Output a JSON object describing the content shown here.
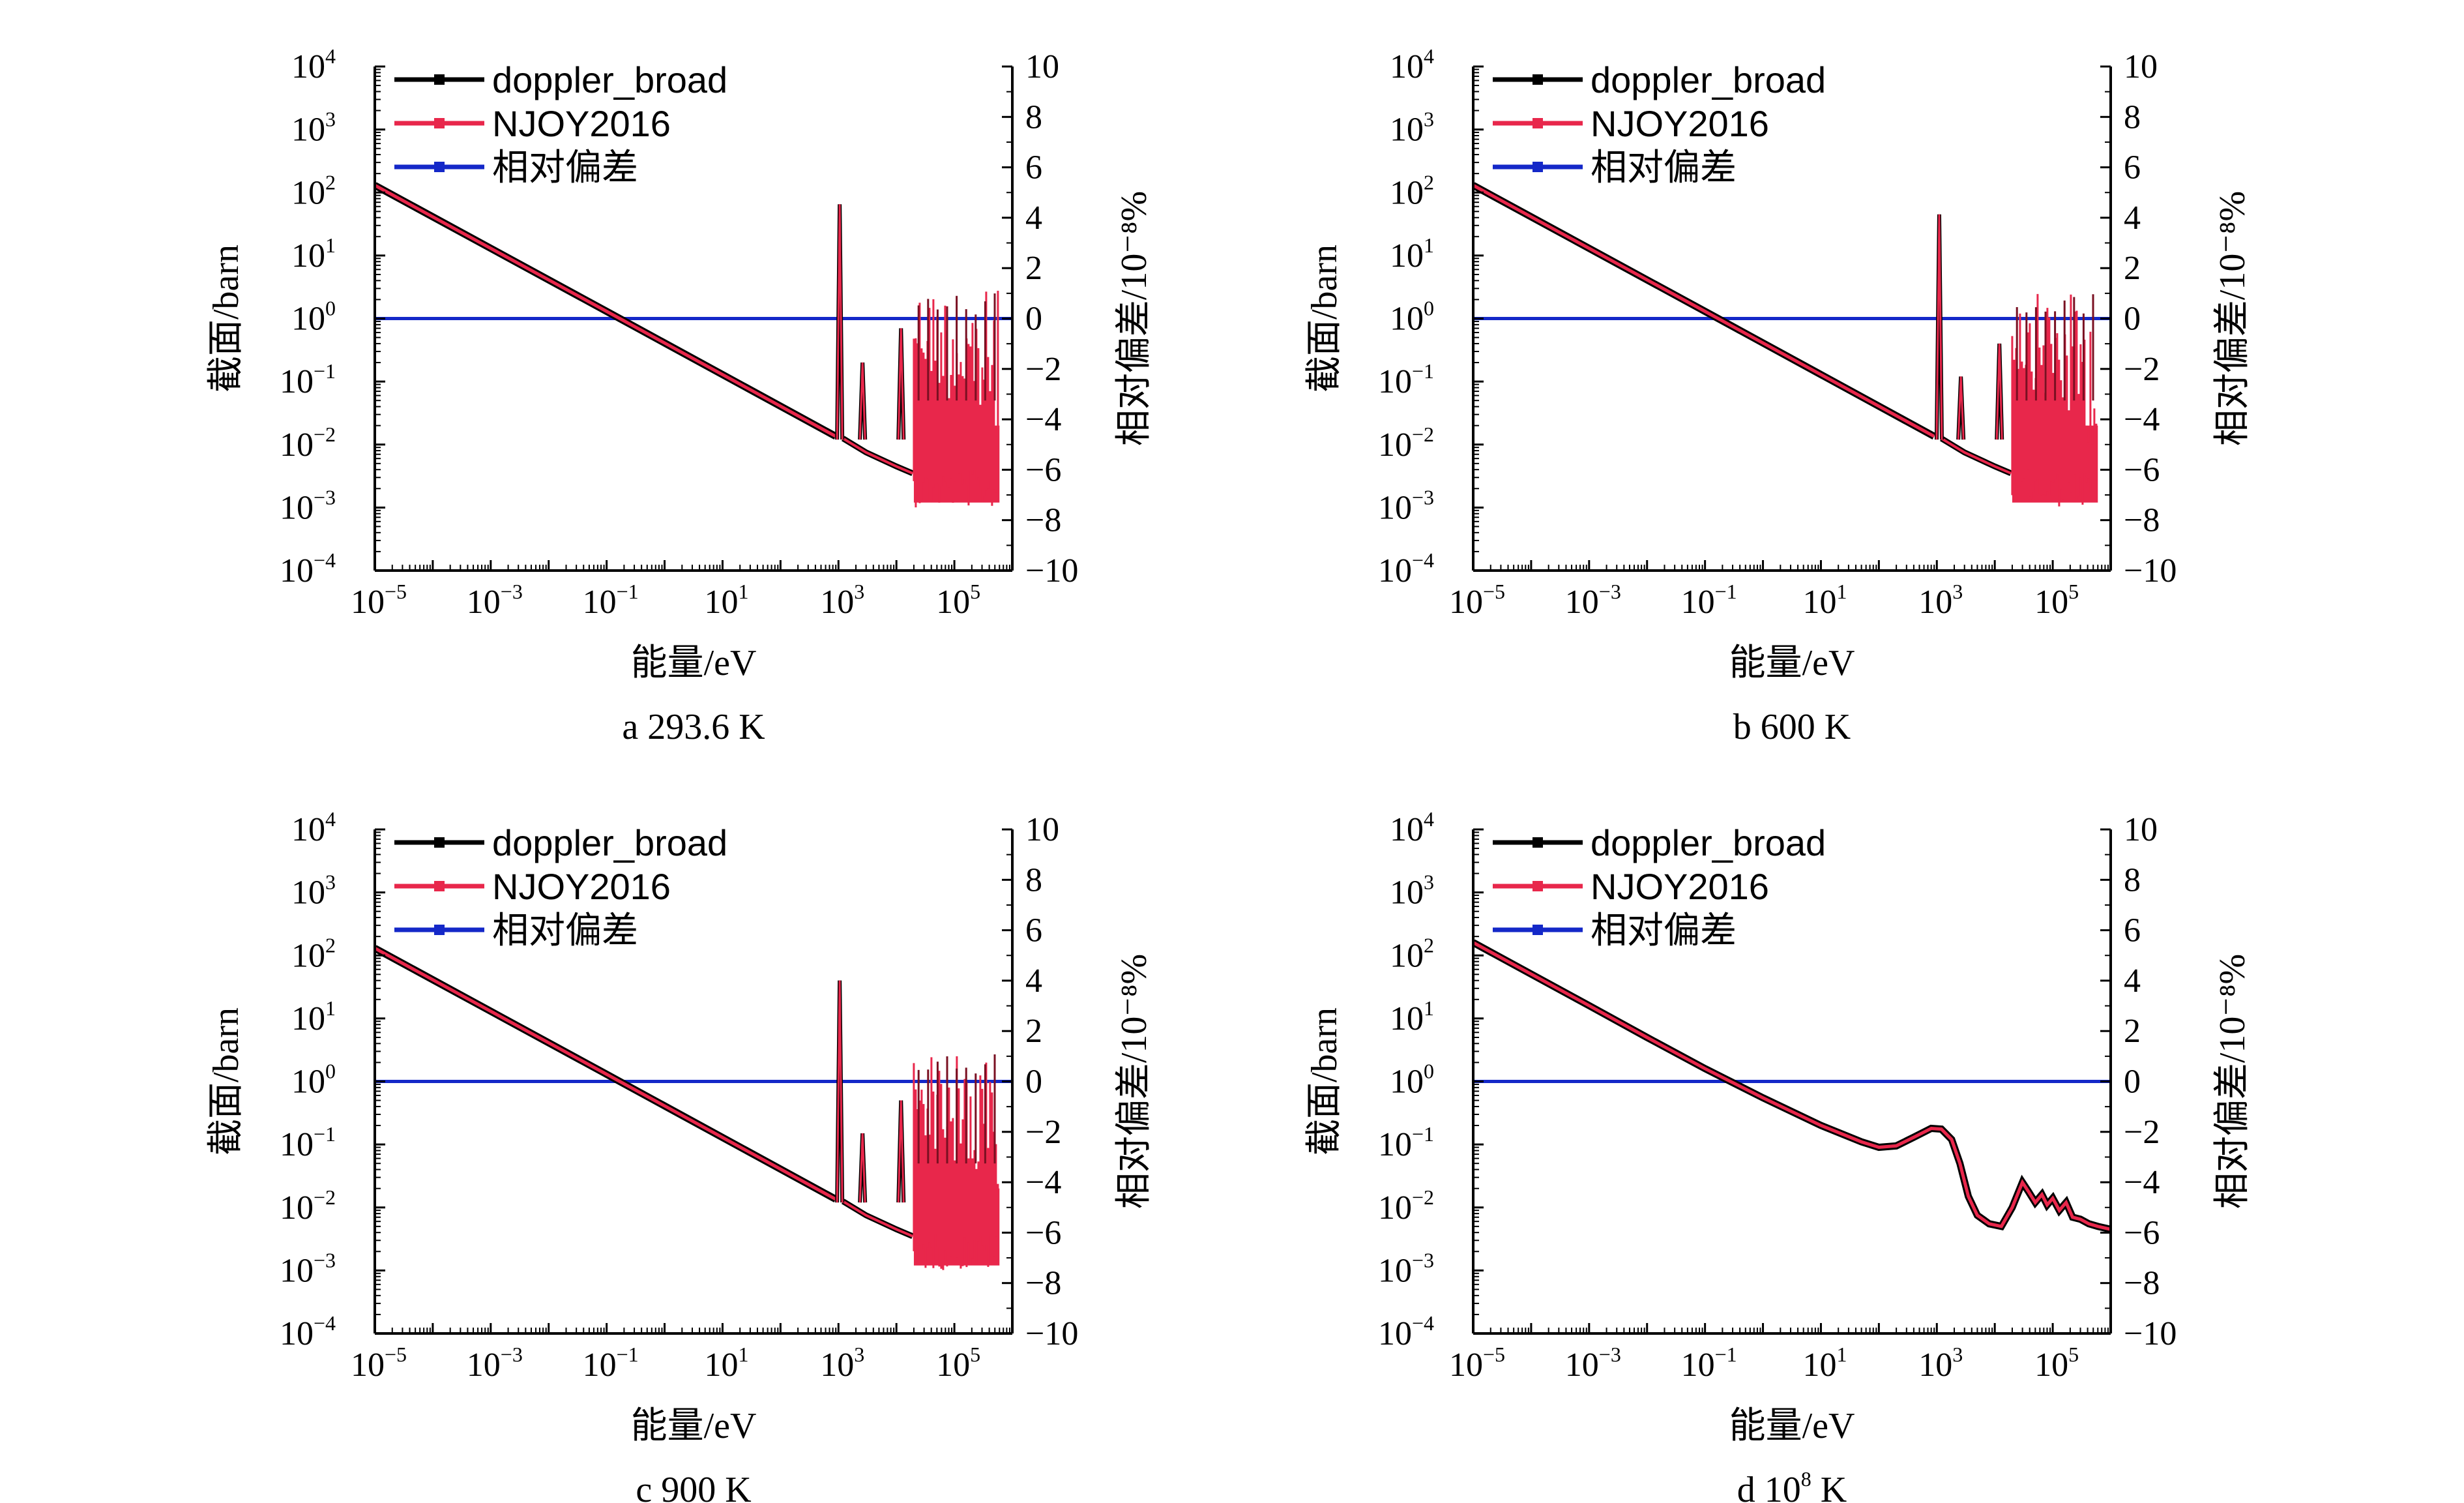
{
  "colors": {
    "doppler_broad": "#000000",
    "njoy": "#e8274b",
    "rel_dev": "#1428c8"
  },
  "legend": [
    {
      "label": "doppler_broad",
      "color": "#000000"
    },
    {
      "label": "NJOY2016",
      "color": "#e8274b"
    },
    {
      "label": "相对偏差",
      "color": "#1428c8"
    }
  ],
  "x_axis_label": "能量/eV",
  "y_left_label": "截面/barn",
  "y_right_label": "相对偏差/10⁻⁸%",
  "chart_data": [
    {
      "type": "line",
      "caption": "a  293.6 K",
      "x_scale": "log",
      "xlim": [
        1e-05,
        1000000
      ],
      "y_scale": "log",
      "ylim": [
        0.0001,
        10000
      ],
      "y2lim": [
        -10,
        10
      ],
      "x_ticks": [
        {
          "base": "10",
          "exp": "−5"
        },
        {
          "base": "10",
          "exp": "−3"
        },
        {
          "base": "10",
          "exp": "−1"
        },
        {
          "base": "10",
          "exp": "1"
        },
        {
          "base": "10",
          "exp": "3"
        },
        {
          "base": "10",
          "exp": "5"
        }
      ],
      "y_ticks": [
        {
          "base": "10",
          "exp": "−4"
        },
        {
          "base": "10",
          "exp": "−3"
        },
        {
          "base": "10",
          "exp": "−2"
        },
        {
          "base": "10",
          "exp": "−1"
        },
        {
          "base": "10",
          "exp": "0"
        },
        {
          "base": "10",
          "exp": "1"
        },
        {
          "base": "10",
          "exp": "2"
        },
        {
          "base": "10",
          "exp": "3"
        },
        {
          "base": "10",
          "exp": "4"
        }
      ],
      "y2_ticks": [
        "10",
        "8",
        "6",
        "4",
        "2",
        "0",
        "−2",
        "−4",
        "−6",
        "−8",
        "−10"
      ],
      "smooth": [
        [
          1e-05,
          130
        ],
        [
          0.1,
          1.3
        ],
        [
          900,
          0.0135
        ]
      ],
      "peaks": [
        [
          1050,
          65
        ],
        [
          2600,
          0.2
        ],
        [
          12000,
          0.7
        ]
      ],
      "tail": [
        [
          1200,
          0.0125
        ],
        [
          3000,
          0.0075
        ],
        [
          10000,
          0.0045
        ],
        [
          19000,
          0.0035
        ]
      ],
      "resonance_region": {
        "x_start": 20000,
        "x_end": 600000,
        "y_low": 0.001,
        "y_high": 3.0
      },
      "relative_deviation": 0
    },
    {
      "type": "line",
      "caption": "b  600 K",
      "x_scale": "log",
      "xlim": [
        1e-05,
        1000000
      ],
      "y_scale": "log",
      "ylim": [
        0.0001,
        10000
      ],
      "y2lim": [
        -10,
        10
      ],
      "x_ticks": [
        {
          "base": "10",
          "exp": "−5"
        },
        {
          "base": "10",
          "exp": "−3"
        },
        {
          "base": "10",
          "exp": "−1"
        },
        {
          "base": "10",
          "exp": "1"
        },
        {
          "base": "10",
          "exp": "3"
        },
        {
          "base": "10",
          "exp": "5"
        }
      ],
      "y_ticks": [
        {
          "base": "10",
          "exp": "−4"
        },
        {
          "base": "10",
          "exp": "−3"
        },
        {
          "base": "10",
          "exp": "−2"
        },
        {
          "base": "10",
          "exp": "−1"
        },
        {
          "base": "10",
          "exp": "0"
        },
        {
          "base": "10",
          "exp": "1"
        },
        {
          "base": "10",
          "exp": "2"
        },
        {
          "base": "10",
          "exp": "3"
        },
        {
          "base": "10",
          "exp": "4"
        }
      ],
      "y2_ticks": [
        "10",
        "8",
        "6",
        "4",
        "2",
        "0",
        "−2",
        "−4",
        "−6",
        "−8",
        "−10"
      ],
      "smooth": [
        [
          1e-05,
          130
        ],
        [
          0.1,
          1.3
        ],
        [
          900,
          0.0135
        ]
      ],
      "peaks": [
        [
          1100,
          45
        ],
        [
          2600,
          0.12
        ],
        [
          12000,
          0.4
        ]
      ],
      "tail": [
        [
          1200,
          0.0125
        ],
        [
          3000,
          0.0075
        ],
        [
          10000,
          0.0045
        ],
        [
          19000,
          0.0035
        ]
      ],
      "resonance_region": {
        "x_start": 20000,
        "x_end": 600000,
        "y_low": 0.001,
        "y_high": 2.5
      },
      "relative_deviation": 0
    },
    {
      "type": "line",
      "caption": "c  900 K",
      "x_scale": "log",
      "xlim": [
        1e-05,
        1000000
      ],
      "y_scale": "log",
      "ylim": [
        0.0001,
        10000
      ],
      "y2lim": [
        -10,
        10
      ],
      "x_ticks": [
        {
          "base": "10",
          "exp": "−5"
        },
        {
          "base": "10",
          "exp": "−3"
        },
        {
          "base": "10",
          "exp": "−1"
        },
        {
          "base": "10",
          "exp": "1"
        },
        {
          "base": "10",
          "exp": "3"
        },
        {
          "base": "10",
          "exp": "5"
        }
      ],
      "y_ticks": [
        {
          "base": "10",
          "exp": "−4"
        },
        {
          "base": "10",
          "exp": "−3"
        },
        {
          "base": "10",
          "exp": "−2"
        },
        {
          "base": "10",
          "exp": "−1"
        },
        {
          "base": "10",
          "exp": "0"
        },
        {
          "base": "10",
          "exp": "1"
        },
        {
          "base": "10",
          "exp": "2"
        },
        {
          "base": "10",
          "exp": "3"
        },
        {
          "base": "10",
          "exp": "4"
        }
      ],
      "y2_ticks": [
        "10",
        "8",
        "6",
        "4",
        "2",
        "0",
        "−2",
        "−4",
        "−6",
        "−8",
        "−10"
      ],
      "smooth": [
        [
          1e-05,
          130
        ],
        [
          0.1,
          1.3
        ],
        [
          900,
          0.0135
        ]
      ],
      "peaks": [
        [
          1050,
          40
        ],
        [
          2600,
          0.15
        ],
        [
          12000,
          0.5
        ]
      ],
      "tail": [
        [
          1200,
          0.0125
        ],
        [
          3000,
          0.0075
        ],
        [
          10000,
          0.0045
        ],
        [
          19000,
          0.0035
        ]
      ],
      "resonance_region": {
        "x_start": 20000,
        "x_end": 600000,
        "y_low": 0.001,
        "y_high": 2.8
      },
      "relative_deviation": 0
    },
    {
      "type": "line",
      "caption_prefix": "d  10",
      "caption_exp": "8",
      "caption_suffix": " K",
      "x_scale": "log",
      "xlim": [
        1e-05,
        1000000
      ],
      "y_scale": "log",
      "ylim": [
        0.0001,
        10000
      ],
      "y2lim": [
        -10,
        10
      ],
      "x_ticks": [
        {
          "base": "10",
          "exp": "−5"
        },
        {
          "base": "10",
          "exp": "−3"
        },
        {
          "base": "10",
          "exp": "−1"
        },
        {
          "base": "10",
          "exp": "1"
        },
        {
          "base": "10",
          "exp": "3"
        },
        {
          "base": "10",
          "exp": "5"
        }
      ],
      "y_ticks": [
        {
          "base": "10",
          "exp": "−4"
        },
        {
          "base": "10",
          "exp": "−3"
        },
        {
          "base": "10",
          "exp": "−2"
        },
        {
          "base": "10",
          "exp": "−1"
        },
        {
          "base": "10",
          "exp": "0"
        },
        {
          "base": "10",
          "exp": "1"
        },
        {
          "base": "10",
          "exp": "2"
        },
        {
          "base": "10",
          "exp": "3"
        },
        {
          "base": "10",
          "exp": "4"
        }
      ],
      "y2_ticks": [
        "10",
        "8",
        "6",
        "4",
        "2",
        "0",
        "−2",
        "−4",
        "−6",
        "−8",
        "−10"
      ],
      "series": [
        [
          1e-05,
          160
        ],
        [
          0.001,
          16
        ],
        [
          0.01,
          5
        ],
        [
          0.1,
          1.6
        ],
        [
          1,
          0.55
        ],
        [
          10,
          0.2
        ],
        [
          50,
          0.11
        ],
        [
          100,
          0.09
        ],
        [
          200,
          0.095
        ],
        [
          400,
          0.13
        ],
        [
          800,
          0.18
        ],
        [
          1200,
          0.175
        ],
        [
          1800,
          0.12
        ],
        [
          2500,
          0.05
        ],
        [
          3500,
          0.015
        ],
        [
          5000,
          0.0075
        ],
        [
          8000,
          0.0055
        ],
        [
          13000,
          0.005
        ],
        [
          20000,
          0.01
        ],
        [
          30000,
          0.025
        ],
        [
          38000,
          0.018
        ],
        [
          50000,
          0.012
        ],
        [
          65000,
          0.016
        ],
        [
          80000,
          0.011
        ],
        [
          100000,
          0.014
        ],
        [
          130000,
          0.009
        ],
        [
          170000,
          0.012
        ],
        [
          220000,
          0.007
        ],
        [
          300000,
          0.0065
        ],
        [
          420000,
          0.0055
        ],
        [
          600000,
          0.005
        ],
        [
          1000000,
          0.0045
        ]
      ],
      "relative_deviation": 0
    }
  ]
}
